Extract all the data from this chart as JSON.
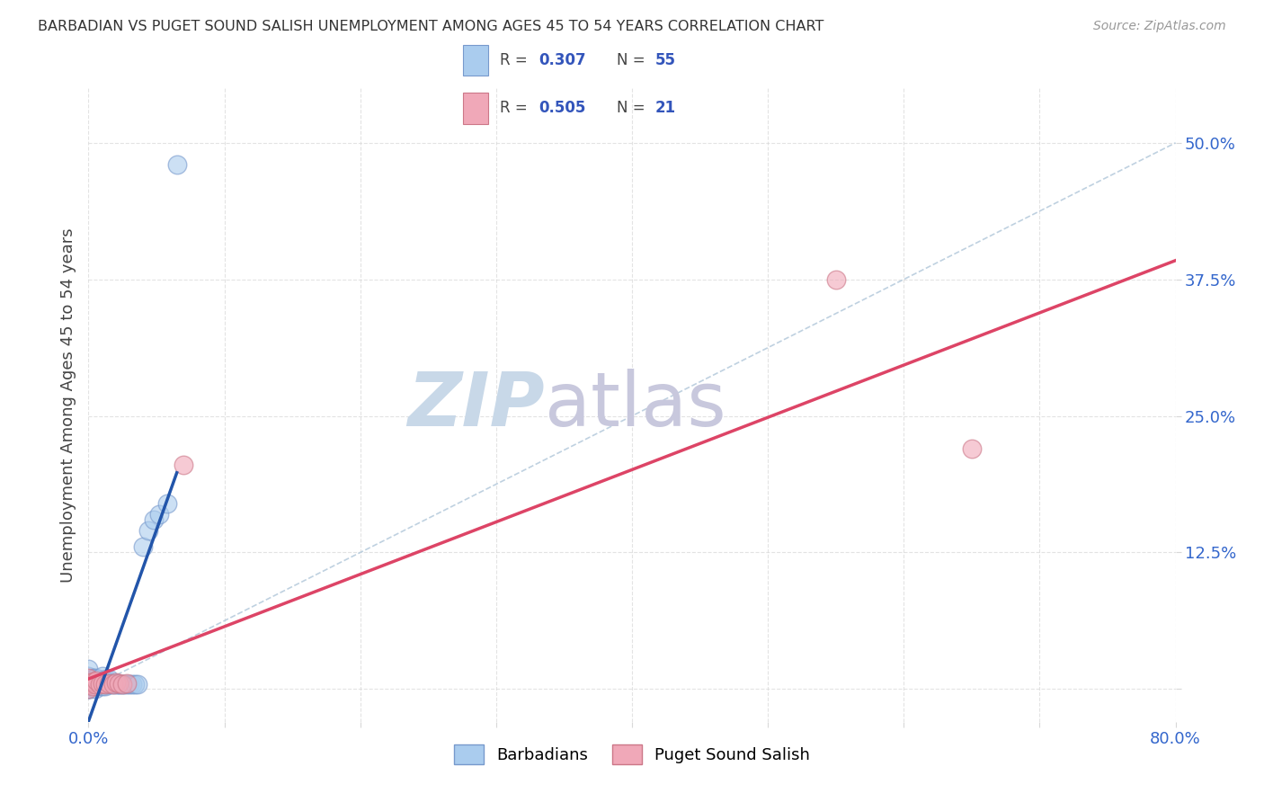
{
  "title": "BARBADIAN VS PUGET SOUND SALISH UNEMPLOYMENT AMONG AGES 45 TO 54 YEARS CORRELATION CHART",
  "source": "Source: ZipAtlas.com",
  "ylabel": "Unemployment Among Ages 45 to 54 years",
  "xlim": [
    0.0,
    0.8
  ],
  "ylim": [
    -0.03,
    0.55
  ],
  "xticks": [
    0.0,
    0.1,
    0.2,
    0.3,
    0.4,
    0.5,
    0.6,
    0.7,
    0.8
  ],
  "xticklabels": [
    "0.0%",
    "",
    "",
    "",
    "",
    "",
    "",
    "",
    "80.0%"
  ],
  "ytick_positions": [
    0.0,
    0.125,
    0.25,
    0.375,
    0.5
  ],
  "ytick_labels": [
    "",
    "12.5%",
    "25.0%",
    "37.5%",
    "50.0%"
  ],
  "background_color": "#ffffff",
  "grid_color": "#d8d8d8",
  "barbadian_color": "#aaccee",
  "barbadian_edge_color": "#7799cc",
  "puget_color": "#f0a8b8",
  "puget_edge_color": "#cc7788",
  "R_barbadian": 0.307,
  "N_barbadian": 55,
  "R_puget": 0.505,
  "N_puget": 21,
  "barbadian_x": [
    0.0,
    0.0,
    0.0,
    0.0,
    0.0,
    0.0,
    0.0,
    0.002,
    0.002,
    0.003,
    0.003,
    0.004,
    0.004,
    0.005,
    0.005,
    0.005,
    0.006,
    0.006,
    0.007,
    0.007,
    0.008,
    0.008,
    0.009,
    0.01,
    0.01,
    0.01,
    0.011,
    0.012,
    0.012,
    0.013,
    0.013,
    0.014,
    0.015,
    0.015,
    0.016,
    0.017,
    0.018,
    0.019,
    0.02,
    0.021,
    0.022,
    0.023,
    0.025,
    0.026,
    0.028,
    0.03,
    0.032,
    0.034,
    0.036,
    0.04,
    0.044,
    0.048,
    0.052,
    0.058,
    0.065
  ],
  "barbadian_y": [
    0.0,
    0.0,
    0.0,
    0.005,
    0.008,
    0.012,
    0.018,
    0.0,
    0.006,
    0.003,
    0.01,
    0.004,
    0.009,
    0.0,
    0.005,
    0.01,
    0.003,
    0.008,
    0.004,
    0.009,
    0.003,
    0.007,
    0.005,
    0.003,
    0.007,
    0.012,
    0.005,
    0.003,
    0.008,
    0.004,
    0.009,
    0.005,
    0.004,
    0.009,
    0.005,
    0.004,
    0.005,
    0.004,
    0.005,
    0.004,
    0.004,
    0.004,
    0.004,
    0.004,
    0.004,
    0.004,
    0.004,
    0.004,
    0.004,
    0.13,
    0.145,
    0.155,
    0.16,
    0.17,
    0.48
  ],
  "puget_x": [
    0.0,
    0.0,
    0.0,
    0.001,
    0.002,
    0.003,
    0.004,
    0.005,
    0.006,
    0.008,
    0.01,
    0.012,
    0.015,
    0.018,
    0.02,
    0.022,
    0.025,
    0.028,
    0.55,
    0.65,
    0.07
  ],
  "puget_y": [
    0.0,
    0.005,
    0.01,
    0.004,
    0.006,
    0.003,
    0.007,
    0.004,
    0.008,
    0.004,
    0.005,
    0.004,
    0.005,
    0.004,
    0.006,
    0.005,
    0.004,
    0.005,
    0.375,
    0.22,
    0.205
  ],
  "diagonal_color": "#b8ccdd",
  "trendline_barbadian_color": "#2255aa",
  "trendline_puget_color": "#dd4466",
  "watermark_zip": "ZIP",
  "watermark_atlas": "atlas",
  "watermark_color_zip": "#c8d8e8",
  "watermark_color_atlas": "#c8c8dd",
  "legend_color_R": "#3355bb",
  "legend_color_text": "#444444",
  "legend_box_color": "#f8f8f8",
  "legend_box_edge": "#cccccc"
}
